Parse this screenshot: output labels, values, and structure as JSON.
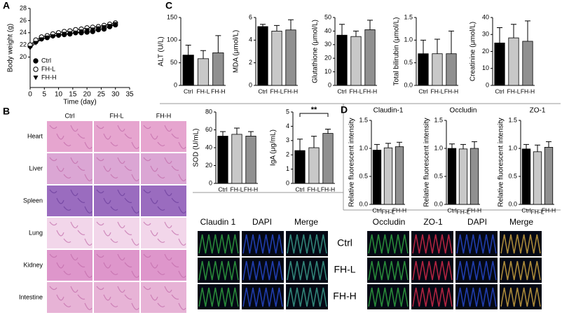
{
  "figure": {
    "panel_labels": [
      "A",
      "B",
      "C",
      "D"
    ],
    "histology": {
      "columns": [
        "Ctrl",
        "FH-L",
        "FH-H"
      ],
      "rows": [
        "Heart",
        "Liver",
        "Spleen",
        "Lung",
        "Kidney",
        "Intestine"
      ]
    },
    "fluorescence_left": {
      "columns": [
        "Claudin 1",
        "DAPI",
        "Merge"
      ]
    },
    "fluorescence_right": {
      "columns": [
        "Occludin",
        "ZO-1",
        "DAPI",
        "Merge"
      ],
      "rows": [
        "Ctrl",
        "FH-L",
        "FH-H"
      ]
    }
  },
  "chart_data": [
    {
      "type": "line",
      "xlabel": "Time (day)",
      "ylabel": "Body weight (g)",
      "x": [
        0,
        2,
        4,
        6,
        8,
        10,
        12,
        14,
        16,
        18,
        20,
        22,
        24,
        26,
        28,
        30
      ],
      "xlim": [
        0,
        35
      ],
      "xticks": [
        0,
        5,
        10,
        15,
        20,
        25,
        30,
        35
      ],
      "ylim": [
        15,
        28
      ],
      "yticks": [
        20,
        22,
        24,
        26,
        28
      ],
      "legend": "lower left",
      "series": [
        {
          "name": "Ctrl",
          "color": "#000000",
          "marker": "circle",
          "values": [
            21.8,
            22.5,
            23,
            23.2,
            23.5,
            23.6,
            23.7,
            23.8,
            24,
            24,
            24.1,
            24.2,
            24.5,
            24.6,
            25,
            25.3
          ]
        },
        {
          "name": "FH-L",
          "color": "#000000",
          "marker": "open-circle",
          "values": [
            22,
            22.8,
            23.3,
            23.5,
            23.8,
            24,
            24.2,
            24.3,
            24.5,
            24.6,
            24.8,
            24.9,
            25,
            25.2,
            25.4,
            25.6
          ]
        },
        {
          "name": "FH-H",
          "color": "#000000",
          "marker": "triangle-down",
          "values": [
            21.5,
            22.3,
            22.9,
            23.2,
            23.4,
            23.6,
            23.8,
            23.9,
            24,
            24.2,
            24.4,
            24.5,
            24.7,
            24.9,
            25.1,
            25.4
          ]
        }
      ]
    },
    {
      "type": "bar",
      "ylabel": "ALT (U/L)",
      "categories": [
        "Ctrl",
        "FH-L",
        "FH-H"
      ],
      "values": [
        67,
        59,
        72
      ],
      "errors": [
        22,
        18,
        38
      ],
      "colors": [
        "#000000",
        "#c8c8c8",
        "#909090"
      ],
      "ylim": [
        0,
        150
      ],
      "yticks": [
        0,
        50,
        100,
        150
      ]
    },
    {
      "type": "bar",
      "ylabel": "MDA  (μmol/L)",
      "categories": [
        "Ctrl",
        "FH-L",
        "FH-H"
      ],
      "values": [
        5.2,
        4.8,
        4.9
      ],
      "errors": [
        0.2,
        0.5,
        0.9
      ],
      "colors": [
        "#000000",
        "#c8c8c8",
        "#909090"
      ],
      "ylim": [
        0,
        6
      ],
      "yticks": [
        0,
        2,
        4,
        6
      ]
    },
    {
      "type": "bar",
      "ylabel": "Glutathione (μmol/L)",
      "categories": [
        "Ctrl",
        "FH-L",
        "FH-H"
      ],
      "values": [
        37,
        36,
        41
      ],
      "errors": [
        8,
        4,
        7
      ],
      "colors": [
        "#000000",
        "#c8c8c8",
        "#909090"
      ],
      "ylim": [
        0,
        50
      ],
      "yticks": [
        0,
        10,
        20,
        30,
        40,
        50
      ]
    },
    {
      "type": "bar",
      "ylabel": "Total bilirubin (μmol/L)",
      "categories": [
        "Ctrl",
        "FH-L",
        "FH-H"
      ],
      "values": [
        0.7,
        0.7,
        0.7
      ],
      "errors": [
        0.3,
        0.32,
        0.5
      ],
      "colors": [
        "#000000",
        "#c8c8c8",
        "#909090"
      ],
      "ylim": [
        0,
        1.5
      ],
      "yticks": [
        {
          "value": 0,
          "label": "0.0"
        },
        0.5,
        {
          "value": 1,
          "label": "1.0"
        },
        1.5
      ]
    },
    {
      "type": "bar",
      "ylabel": "Creatinine (μmol/L)",
      "categories": [
        "Ctrl",
        "FH-L",
        "FH-H"
      ],
      "values": [
        25,
        28,
        26
      ],
      "errors": [
        9,
        8,
        12
      ],
      "colors": [
        "#000000",
        "#c8c8c8",
        "#909090"
      ],
      "ylim": [
        0,
        40
      ],
      "yticks": [
        0,
        10,
        20,
        30,
        40
      ]
    },
    {
      "type": "bar",
      "ylabel": "SOD (U/mL)",
      "categories": [
        "Ctrl",
        "FH-L",
        "FH-H"
      ],
      "values": [
        53,
        55,
        53
      ],
      "errors": [
        5,
        7,
        5
      ],
      "colors": [
        "#000000",
        "#c8c8c8",
        "#909090"
      ],
      "ylim": [
        0,
        80
      ],
      "yticks": [
        0,
        20,
        40,
        60,
        80
      ]
    },
    {
      "type": "bar",
      "ylabel": "IgA (μg/mL)",
      "categories": [
        "Ctrl",
        "FH-L",
        "FH-H"
      ],
      "values": [
        2.3,
        2.5,
        3.5
      ],
      "errors": [
        0.8,
        0.8,
        0.3
      ],
      "colors": [
        "#000000",
        "#c8c8c8",
        "#909090"
      ],
      "ylim": [
        0,
        5
      ],
      "yticks": [
        0,
        1,
        2,
        3,
        4,
        5
      ],
      "annotation": "**"
    },
    {
      "type": "bar",
      "title": "Claudin-1",
      "ylabel": "Relative fluorescent intensity",
      "categories": [
        "Ctrl",
        "FH-L",
        "FH-H"
      ],
      "values": [
        0.97,
        1.01,
        1.03
      ],
      "errors": [
        0.1,
        0.08,
        0.08
      ],
      "colors": [
        "#000000",
        "#c8c8c8",
        "#909090"
      ],
      "ylim": [
        0,
        1.5
      ],
      "yticks": [
        {
          "value": 0,
          "label": "0.0"
        },
        0.5,
        {
          "value": 1,
          "label": "1.0"
        },
        1.5
      ]
    },
    {
      "type": "bar",
      "title": "Occludin",
      "ylabel": "Relative fluorescent intensity",
      "categories": [
        "Ctrl",
        "FH-L",
        "FH-H"
      ],
      "values": [
        1.0,
        0.99,
        1.0
      ],
      "errors": [
        0.08,
        0.08,
        0.12
      ],
      "colors": [
        "#000000",
        "#c8c8c8",
        "#909090"
      ],
      "ylim": [
        0,
        1.5
      ],
      "yticks": [
        {
          "value": 0,
          "label": "0.0"
        },
        0.5,
        {
          "value": 1,
          "label": "1.0"
        },
        1.5
      ]
    },
    {
      "type": "bar",
      "title": "ZO-1",
      "ylabel": "Relative fluorescent intensity",
      "categories": [
        "Ctrl",
        "FH-L",
        "FH-H"
      ],
      "values": [
        0.99,
        0.94,
        1.02
      ],
      "errors": [
        0.08,
        0.12,
        0.1
      ],
      "colors": [
        "#000000",
        "#c8c8c8",
        "#909090"
      ],
      "ylim": [
        0,
        1.5
      ],
      "yticks": [
        {
          "value": 0,
          "label": "0.0"
        },
        0.5,
        {
          "value": 1,
          "label": "1.0"
        },
        1.5
      ]
    }
  ]
}
